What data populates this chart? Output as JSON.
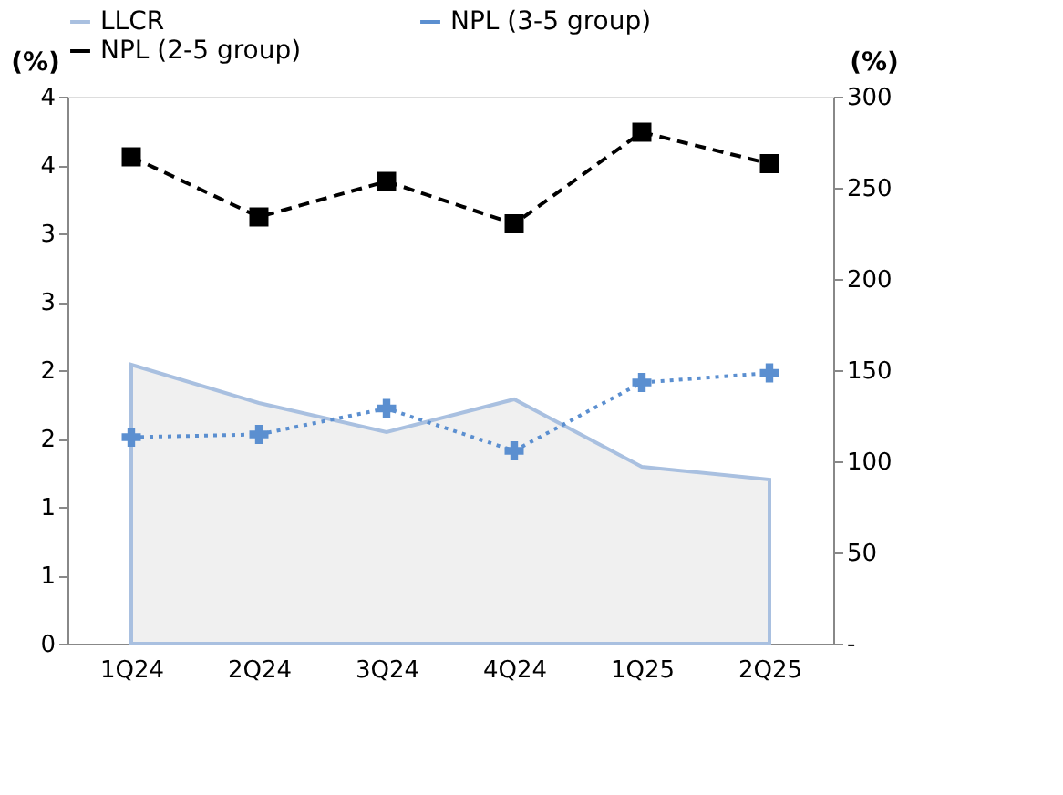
{
  "chart_data": {
    "type": "line",
    "categories": [
      "1Q24",
      "2Q24",
      "3Q24",
      "4Q24",
      "1Q25",
      "2Q25"
    ],
    "ylabel": "(%)",
    "y2label": "(%)",
    "ylim": [
      0,
      4
    ],
    "yticks": [
      0,
      {
        "value": 0.5,
        "label": "1"
      },
      1,
      {
        "value": 1.5,
        "label": "2"
      },
      2,
      {
        "value": 2.5,
        "label": "3"
      },
      3,
      {
        "value": 3.5,
        "label": "4"
      },
      4
    ],
    "y2lim": [
      0,
      300
    ],
    "y2ticks": [
      {
        "value": 0,
        "label": "-"
      },
      50,
      100,
      150,
      200,
      250,
      300
    ],
    "grid": false,
    "legend": "top",
    "series": [
      {
        "name": "LLCR",
        "type": "area",
        "axis": "y2",
        "color": "#a9c0e0",
        "values": [
          153,
          132,
          116,
          134,
          97,
          90
        ]
      },
      {
        "name": "NPL (3-5 group)",
        "color": "#5b8fd0",
        "marker": "cross",
        "line_style": "dotted",
        "values": [
          1.51,
          1.53,
          1.72,
          1.41,
          1.91,
          1.98
        ]
      },
      {
        "name": "NPL (2-5 group)",
        "color": "#000000",
        "marker": "square",
        "line_style": "dashed",
        "values": [
          3.56,
          3.12,
          3.38,
          3.07,
          3.74,
          3.51
        ]
      }
    ]
  }
}
